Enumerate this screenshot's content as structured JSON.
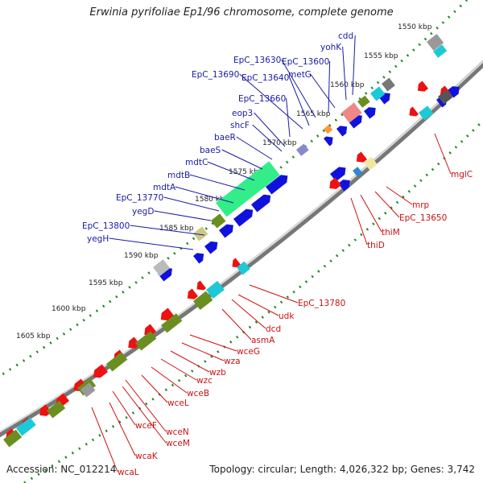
{
  "title": "Erwinia pyrifoliae Ep1/96 chromosome, complete genome",
  "accession": "Accession: NC_012214",
  "summary": "Topology: circular; Length: 4,026,322 bp; Genes: 3,742",
  "colors": {
    "forward_label": "#1a1aa8",
    "reverse_label": "#cc1111",
    "forward_gene": "#1111dd",
    "reverse_gene": "#ee1111"
  },
  "kbp_ticks": [
    "1550 kbp",
    "1555 kbp",
    "1560 kbp",
    "1565 kbp",
    "1570 kbp",
    "1575 kbp",
    "1580 kbp",
    "1585 kbp",
    "1590 kbp",
    "1595 kbp",
    "1600 kbp",
    "1605 kbp"
  ],
  "forward_genes": [
    "cdd",
    "yohK",
    "EpC_13630",
    "EpC_13600",
    "metG",
    "EpC_13690",
    "EpC_13640",
    "EpC_13660",
    "eop3",
    "shcF",
    "baeR",
    "baeS",
    "mdtC",
    "mdtB",
    "mdtA",
    "EpC_13770",
    "yegD",
    "EpC_13800",
    "yegH"
  ],
  "reverse_genes": [
    "mglC",
    "mrp",
    "EpC_13650",
    "thiM",
    "thiD",
    "EpC_13780",
    "udk",
    "dcd",
    "asmA",
    "wceG",
    "wza",
    "wzb",
    "wzc",
    "wceB",
    "wceL",
    "wceF",
    "wceN",
    "wceM",
    "wcaK",
    "wcaL"
  ]
}
